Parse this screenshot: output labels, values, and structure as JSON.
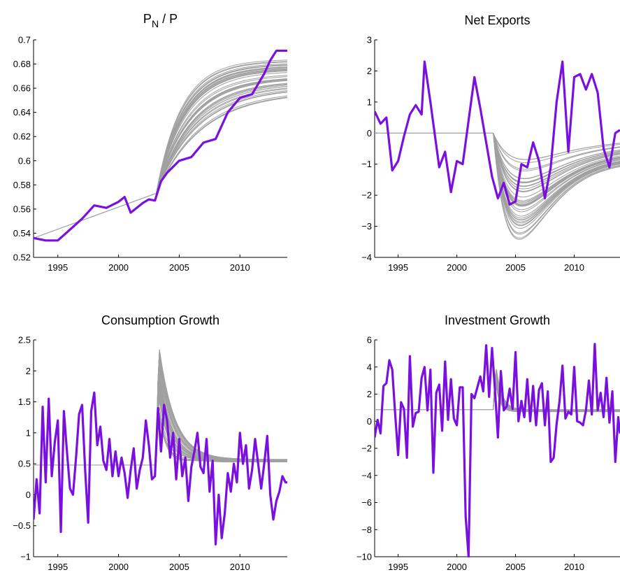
{
  "chart_data": [
    {
      "type": "line",
      "title": "P_N / P",
      "title_main": "P",
      "title_sub": "N",
      "title_rest": " / P",
      "xlim": [
        1993,
        2013.9
      ],
      "ylim": [
        0.52,
        0.7
      ],
      "xticks": [
        1995,
        2000,
        2005,
        2010
      ],
      "yticks": [
        0.52,
        0.54,
        0.56,
        0.58,
        0.6,
        0.62,
        0.64,
        0.66,
        0.68,
        0.7
      ],
      "ytick_labels": [
        "0.52",
        "0.54",
        "0.56",
        "0.58",
        "0.6",
        "0.62",
        "0.64",
        "0.66",
        "0.68",
        "0.7"
      ],
      "series": [
        {
          "role": "actual",
          "color": "#7a10e0",
          "x": [
            1993.0,
            1994.0,
            1995.0,
            1996.0,
            1997.0,
            1998.0,
            1999.0,
            2000.0,
            2000.5,
            2001.0,
            2002.0,
            2002.5,
            2003.0,
            2003.5,
            2004.0,
            2005.0,
            2006.0,
            2007.0,
            2008.0,
            2009.0,
            2010.0,
            2011.0,
            2012.0,
            2012.5,
            2013.0,
            2013.9
          ],
          "y": [
            0.536,
            0.534,
            0.534,
            0.543,
            0.552,
            0.563,
            0.561,
            0.566,
            0.57,
            0.557,
            0.565,
            0.568,
            0.567,
            0.583,
            0.59,
            0.6,
            0.603,
            0.615,
            0.618,
            0.64,
            0.652,
            0.655,
            0.672,
            0.683,
            0.691,
            0.691
          ]
        }
      ],
      "forecast": {
        "color": "#a0a0a0",
        "count": 40,
        "start_x": 2003.1,
        "start_y": 0.573,
        "end_min": 0.655,
        "end_max": 0.686,
        "pre_start_x": 1993.0,
        "pre_start_y": 0.536
      }
    },
    {
      "type": "line",
      "title": "Net Exports",
      "xlim": [
        1993,
        2013.9
      ],
      "ylim": [
        -4,
        3
      ],
      "xticks": [
        1995,
        2000,
        2005,
        2010
      ],
      "yticks": [
        -4,
        -3,
        -2,
        -1,
        0,
        1,
        2,
        3
      ],
      "ytick_labels": [
        "−4",
        "−3",
        "−2",
        "−1",
        "0",
        "1",
        "2",
        "3"
      ],
      "series": [
        {
          "role": "actual",
          "color": "#7a10e0",
          "x": [
            1993.0,
            1993.5,
            1994.0,
            1994.5,
            1995.0,
            1995.5,
            1996.0,
            1996.5,
            1997.0,
            1997.25,
            1997.75,
            1998.0,
            1998.5,
            1999.0,
            1999.5,
            2000.0,
            2000.5,
            2001.0,
            2001.5,
            2002.0,
            2002.5,
            2003.0,
            2003.5,
            2004.0,
            2004.5,
            2005.0,
            2005.5,
            2006.0,
            2006.5,
            2007.0,
            2007.5,
            2008.0,
            2008.5,
            2009.0,
            2009.5,
            2010.0,
            2010.5,
            2011.0,
            2011.5,
            2012.0,
            2012.5,
            2013.0,
            2013.5,
            2013.9
          ],
          "y": [
            0.7,
            0.3,
            0.5,
            -1.2,
            -0.9,
            -0.1,
            0.6,
            0.9,
            0.6,
            2.3,
            1.0,
            0.3,
            -1.1,
            -0.6,
            -1.9,
            -0.9,
            -1.0,
            0.4,
            1.8,
            0.8,
            -0.3,
            -1.4,
            -2.1,
            -1.6,
            -2.3,
            -2.2,
            -1.0,
            -1.1,
            -0.3,
            -0.9,
            -2.1,
            -1.1,
            1.0,
            2.3,
            -0.6,
            1.8,
            1.9,
            1.4,
            1.9,
            1.3,
            -0.5,
            -1.1,
            0.0,
            0.1
          ]
        }
      ],
      "forecast": {
        "color": "#a0a0a0",
        "count": 40,
        "start_x": 2003.1,
        "start_y": 0.0,
        "trough_min": -3.5,
        "trough_max": -0.8,
        "end_min": -1.0,
        "end_max": -0.2,
        "pre_start_x": 1993.0,
        "pre_start_y": 0.0
      }
    },
    {
      "type": "line",
      "title": "Consumption Growth",
      "xlim": [
        1993,
        2013.9
      ],
      "ylim": [
        -1,
        2.5
      ],
      "xticks": [
        1995,
        2000,
        2005,
        2010
      ],
      "yticks": [
        -1,
        -0.5,
        0,
        0.5,
        1,
        1.5,
        2,
        2.5
      ],
      "ytick_labels": [
        "−1",
        "−0.5",
        "0",
        "0.5",
        "1",
        "1.5",
        "2",
        "2.5"
      ],
      "series": [
        {
          "role": "actual",
          "color": "#7a10e0",
          "x": [
            1993.0,
            1993.25,
            1993.5,
            1993.75,
            1994.0,
            1994.25,
            1994.5,
            1994.75,
            1995.0,
            1995.25,
            1995.5,
            1995.75,
            1996.0,
            1996.25,
            1996.5,
            1996.75,
            1997.0,
            1997.25,
            1997.5,
            1997.75,
            1998.0,
            1998.25,
            1998.5,
            1998.75,
            1999.0,
            1999.25,
            1999.5,
            1999.75,
            2000.0,
            2000.25,
            2000.5,
            2000.75,
            2001.0,
            2001.25,
            2001.5,
            2001.75,
            2002.0,
            2002.25,
            2002.5,
            2002.75,
            2003.0,
            2003.25,
            2003.5,
            2003.75,
            2004.0,
            2004.25,
            2004.5,
            2004.75,
            2005.0,
            2005.25,
            2005.5,
            2005.75,
            2006.0,
            2006.25,
            2006.5,
            2006.75,
            2007.0,
            2007.25,
            2007.5,
            2007.75,
            2008.0,
            2008.25,
            2008.5,
            2008.75,
            2009.0,
            2009.25,
            2009.5,
            2009.75,
            2010.0,
            2010.25,
            2010.5,
            2010.75,
            2011.0,
            2011.25,
            2011.5,
            2011.75,
            2012.0,
            2012.25,
            2012.5,
            2012.75,
            2013.0,
            2013.25,
            2013.5,
            2013.75,
            2013.9
          ],
          "y": [
            -0.4,
            0.25,
            -0.3,
            1.42,
            0.2,
            1.55,
            0.3,
            0.85,
            1.2,
            -0.6,
            1.35,
            0.7,
            0.1,
            0.0,
            0.6,
            1.3,
            1.45,
            0.4,
            -0.45,
            1.35,
            1.65,
            0.8,
            1.1,
            0.55,
            0.4,
            0.9,
            0.3,
            0.7,
            0.3,
            0.6,
            0.35,
            -0.05,
            0.4,
            0.75,
            0.1,
            0.4,
            0.6,
            1.2,
            0.8,
            0.25,
            0.3,
            1.4,
            0.7,
            1.45,
            1.2,
            0.6,
            1.0,
            0.25,
            0.9,
            0.3,
            0.6,
            -0.1,
            0.45,
            0.7,
            1.0,
            0.45,
            0.35,
            0.9,
            0.05,
            0.55,
            -0.8,
            0.0,
            -0.7,
            -0.3,
            0.35,
            0.05,
            0.5,
            0.2,
            1.0,
            0.5,
            0.8,
            0.1,
            0.4,
            0.9,
            0.5,
            0.1,
            0.5,
            0.95,
            0.0,
            -0.4,
            -0.1,
            0.05,
            0.3,
            0.2,
            0.2
          ]
        }
      ],
      "forecast": {
        "color": "#a0a0a0",
        "count": 40,
        "start_x": 2003.1,
        "start_y": 0.48,
        "spike_min": 1.3,
        "spike_max": 2.45,
        "end_min": 0.53,
        "end_max": 0.57,
        "pre_start_x": 1993.0,
        "pre_start_y": 0.48
      }
    },
    {
      "type": "line",
      "title": "Investment Growth",
      "xlim": [
        1993,
        2013.9
      ],
      "ylim": [
        -10,
        6
      ],
      "xticks": [
        1995,
        2000,
        2005,
        2010
      ],
      "yticks": [
        -10,
        -8,
        -6,
        -4,
        -2,
        0,
        2,
        4,
        6
      ],
      "ytick_labels": [
        "−10",
        "−8",
        "−6",
        "−4",
        "−2",
        "0",
        "2",
        "4",
        "6"
      ],
      "series": [
        {
          "role": "actual",
          "color": "#7a10e0",
          "x": [
            1993.0,
            1993.25,
            1993.5,
            1993.75,
            1994.0,
            1994.25,
            1994.5,
            1994.75,
            1995.0,
            1995.25,
            1995.5,
            1995.75,
            1996.0,
            1996.25,
            1996.5,
            1996.75,
            1997.0,
            1997.25,
            1997.5,
            1997.75,
            1998.0,
            1998.25,
            1998.5,
            1998.75,
            1999.0,
            1999.25,
            1999.5,
            1999.75,
            2000.0,
            2000.25,
            2000.5,
            2000.75,
            2001.0,
            2001.25,
            2001.5,
            2001.75,
            2002.0,
            2002.25,
            2002.5,
            2002.75,
            2003.0,
            2003.25,
            2003.5,
            2003.75,
            2004.0,
            2004.25,
            2004.5,
            2004.75,
            2005.0,
            2005.25,
            2005.5,
            2005.75,
            2006.0,
            2006.25,
            2006.5,
            2006.75,
            2007.0,
            2007.25,
            2007.5,
            2007.75,
            2008.0,
            2008.25,
            2008.5,
            2008.75,
            2009.0,
            2009.25,
            2009.5,
            2009.75,
            2010.0,
            2010.25,
            2010.5,
            2010.75,
            2011.0,
            2011.25,
            2011.5,
            2011.75,
            2012.0,
            2012.25,
            2012.5,
            2012.75,
            2013.0,
            2013.25,
            2013.5,
            2013.75,
            2013.9
          ],
          "y": [
            -1.2,
            0.1,
            -0.9,
            2.6,
            2.8,
            4.5,
            3.8,
            0.5,
            -2.5,
            1.4,
            0.9,
            -2.7,
            4.8,
            -0.4,
            0.6,
            0.7,
            3.2,
            4.0,
            0.8,
            3.8,
            -3.8,
            2.1,
            2.7,
            -0.7,
            4.4,
            0.1,
            3.1,
            0.2,
            -0.3,
            2.5,
            2.5,
            -7.0,
            -10.0,
            2.0,
            1.7,
            2.5,
            3.3,
            2.2,
            5.6,
            1.8,
            5.4,
            2.3,
            -1.2,
            3.7,
            0.8,
            1.1,
            2.4,
            0.9,
            5.1,
            0.0,
            1.5,
            0.3,
            3.1,
            0.0,
            2.6,
            -0.3,
            2.3,
            2.8,
            -0.3,
            2.2,
            -3.0,
            -2.7,
            -0.2,
            1.5,
            4.1,
            0.2,
            0.7,
            0.5,
            4.0,
            0.0,
            -0.1,
            -0.3,
            0.8,
            3.0,
            0.5,
            5.7,
            0.8,
            2.1,
            0.3,
            3.2,
            -0.1,
            2.2,
            -3.0,
            0.3,
            -0.9
          ]
        }
      ],
      "forecast": {
        "color": "#a0a0a0",
        "count": 40,
        "start_x": 2003.1,
        "start_y": 0.85,
        "spike_min": 2.8,
        "spike_max": 4.3,
        "end_min": 0.7,
        "end_max": 0.85,
        "pre_start_x": 1993.0,
        "pre_start_y": 0.85
      }
    }
  ]
}
